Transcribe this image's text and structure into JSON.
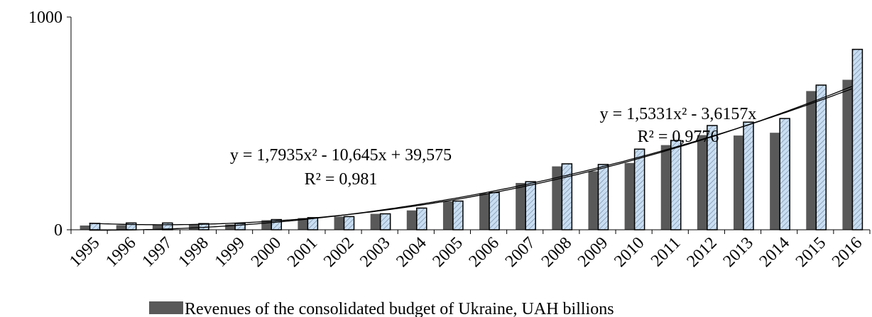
{
  "chart_data": {
    "type": "bar",
    "categories": [
      "1995",
      "1996",
      "1997",
      "1998",
      "1999",
      "2000",
      "2001",
      "2002",
      "2003",
      "2004",
      "2005",
      "2006",
      "2007",
      "2008",
      "2009",
      "2010",
      "2011",
      "2012",
      "2013",
      "2014",
      "2015",
      "2016"
    ],
    "series": [
      {
        "name": "Revenues of the consolidated budget of Ukraine, UAH billions",
        "color": "#595959",
        "values": [
          20,
          22,
          22,
          24,
          25,
          45,
          55,
          62,
          75,
          91,
          134,
          172,
          220,
          298,
          275,
          314,
          398,
          445,
          443,
          456,
          652,
          705
        ]
      },
      {
        "color": "#c9def2",
        "values": [
          30,
          32,
          32,
          29,
          30,
          48,
          57,
          62,
          75,
          102,
          135,
          175,
          226,
          310,
          307,
          379,
          420,
          490,
          506,
          523,
          680,
          848
        ]
      }
    ],
    "ylim": [
      0,
      1000
    ],
    "yticks": [
      0,
      1000
    ],
    "trendlines": [
      {
        "equation": "y = 1,7935x² - 10,645x + 39,575",
        "r2": "R² = 0,981",
        "coefficients": [
          1.7935,
          -10.645,
          39.575
        ]
      },
      {
        "equation": "y = 1,5331x² - 3,6157x",
        "r2": "R² = 0,9776",
        "coefficients": [
          1.5331,
          -3.6157,
          0
        ]
      }
    ]
  }
}
